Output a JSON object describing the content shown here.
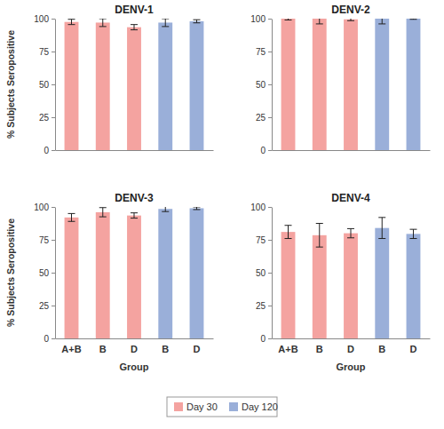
{
  "chart_data": [
    {
      "type": "bar",
      "title": "DENV-1",
      "ylabel": "% Subjects Seropositive",
      "categories": [
        "A+B",
        "B",
        "D",
        "B",
        "D"
      ],
      "series": [
        {
          "name": "Day 30",
          "color": "#f4a3a0",
          "values": [
            97.5,
            97,
            93.5,
            null,
            null
          ],
          "errors": [
            2,
            3,
            2,
            null,
            null
          ]
        },
        {
          "name": "Day 120",
          "color": "#9aafd9",
          "values": [
            null,
            null,
            null,
            97,
            98
          ],
          "errors": [
            null,
            null,
            null,
            3,
            1.2
          ]
        }
      ],
      "ylim": [
        0,
        100
      ],
      "yticks": [
        0,
        25,
        50,
        75,
        100
      ],
      "grid": false,
      "tick_labels": "y",
      "legend": "bottom"
    },
    {
      "type": "bar",
      "title": "DENV-2",
      "categories": [
        "A+B",
        "B",
        "D",
        "B",
        "D"
      ],
      "series": [
        {
          "name": "Day 30",
          "color": "#f4a3a0",
          "values": [
            100,
            100,
            99.5,
            null,
            null
          ],
          "errors": [
            1,
            4,
            1,
            null,
            null
          ]
        },
        {
          "name": "Day 120",
          "color": "#9aafd9",
          "values": [
            null,
            null,
            null,
            100,
            100
          ],
          "errors": [
            null,
            null,
            null,
            4,
            0.5
          ]
        }
      ],
      "ylim": [
        0,
        100
      ],
      "yticks": [
        0,
        25,
        50,
        75,
        100
      ],
      "grid": false,
      "tick_labels": "y"
    },
    {
      "type": "bar",
      "title": "DENV-3",
      "ylabel": "% Subjects Seropositive",
      "xlabel": "Group",
      "categories": [
        "A+B",
        "B",
        "D",
        "B",
        "D"
      ],
      "series": [
        {
          "name": "Day 30",
          "color": "#f4a3a0",
          "values": [
            92,
            96,
            93.5,
            null,
            null
          ],
          "errors": [
            3,
            3.5,
            2,
            null,
            null
          ]
        },
        {
          "name": "Day 120",
          "color": "#9aafd9",
          "values": [
            null,
            null,
            null,
            98.5,
            99
          ],
          "errors": [
            null,
            null,
            null,
            2,
            1
          ]
        }
      ],
      "ylim": [
        0,
        100
      ],
      "yticks": [
        0,
        25,
        50,
        75,
        100
      ],
      "grid": false
    },
    {
      "type": "bar",
      "title": "DENV-4",
      "xlabel": "Group",
      "categories": [
        "A+B",
        "B",
        "D",
        "B",
        "D"
      ],
      "series": [
        {
          "name": "Day 30",
          "color": "#f4a3a0",
          "values": [
            81,
            78.5,
            80,
            null,
            null
          ],
          "errors": [
            5,
            9,
            3.5,
            null,
            null
          ]
        },
        {
          "name": "Day 120",
          "color": "#9aafd9",
          "values": [
            null,
            null,
            null,
            84,
            79.5
          ],
          "errors": [
            null,
            null,
            null,
            8,
            3.5
          ]
        }
      ],
      "ylim": [
        0,
        100
      ],
      "yticks": [
        0,
        25,
        50,
        75,
        100
      ],
      "grid": false
    }
  ]
}
